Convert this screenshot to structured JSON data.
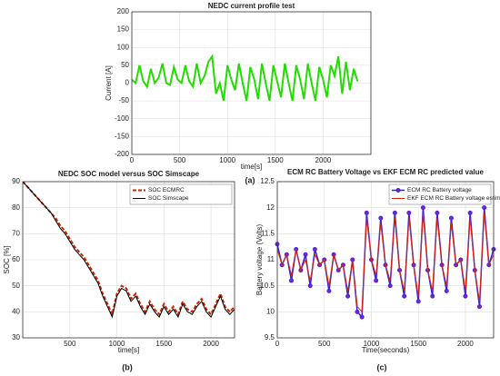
{
  "chart_data": [
    {
      "type": "line",
      "title": "NEDC current profile test",
      "x_label": "time[s]",
      "y_label": "Current [A]",
      "caption": "(a)",
      "xlim": [
        0,
        2500
      ],
      "xticks": [
        0,
        500,
        1000,
        1500,
        2000
      ],
      "ylim": [
        -200,
        200
      ],
      "yticks": [
        -200,
        -150,
        -100,
        -50,
        0,
        50,
        100,
        150,
        200
      ],
      "grid": true,
      "x": [
        0,
        40,
        80,
        120,
        160,
        200,
        240,
        280,
        320,
        360,
        400,
        440,
        480,
        520,
        560,
        600,
        640,
        680,
        720,
        760,
        800,
        840,
        880,
        920,
        960,
        1000,
        1040,
        1080,
        1120,
        1160,
        1200,
        1240,
        1280,
        1320,
        1360,
        1400,
        1440,
        1480,
        1520,
        1560,
        1600,
        1640,
        1680,
        1720,
        1760,
        1800,
        1840,
        1880,
        1920,
        1960,
        2000,
        2040,
        2080,
        2120,
        2160,
        2200,
        2240,
        2280,
        2320,
        2360
      ],
      "series": [
        {
          "name": null,
          "color": "#22dd00",
          "width": 2,
          "values": [
            10,
            0,
            50,
            5,
            -10,
            40,
            0,
            15,
            55,
            0,
            -5,
            45,
            10,
            0,
            50,
            5,
            -10,
            55,
            0,
            20,
            60,
            75,
            -30,
            0,
            -50,
            50,
            10,
            -20,
            55,
            0,
            -50,
            45,
            10,
            -45,
            55,
            0,
            -50,
            50,
            5,
            -40,
            55,
            0,
            -50,
            50,
            10,
            -45,
            55,
            0,
            -50,
            45,
            10,
            -40,
            50,
            20,
            75,
            -30,
            60,
            -20,
            40,
            5
          ]
        }
      ]
    },
    {
      "type": "line",
      "title": "NEDC SOC model versus  SOC Simscape",
      "x_label": "time[s]",
      "y_label": "SOC [%]",
      "caption": "(b)",
      "xlim": [
        0,
        2250
      ],
      "xticks": [
        500,
        1000,
        1500,
        2000
      ],
      "ylim": [
        30,
        90
      ],
      "yticks": [
        30,
        40,
        50,
        60,
        70,
        80,
        90
      ],
      "grid": true,
      "legend": "northeast",
      "x": [
        0,
        50,
        100,
        150,
        200,
        250,
        300,
        350,
        400,
        450,
        500,
        550,
        600,
        650,
        700,
        750,
        800,
        850,
        900,
        950,
        1000,
        1050,
        1100,
        1150,
        1200,
        1250,
        1300,
        1350,
        1400,
        1450,
        1500,
        1550,
        1600,
        1650,
        1700,
        1750,
        1800,
        1850,
        1900,
        1950,
        2000,
        2050,
        2100,
        2150,
        2200,
        2250
      ],
      "series": [
        {
          "name": "SOC ECMRC",
          "color": "#cc2200",
          "width": 2,
          "dash": true,
          "values": [
            90,
            88,
            86,
            84,
            82,
            80,
            78,
            76,
            73,
            71,
            68,
            65,
            63,
            61,
            58,
            55,
            52,
            47,
            43,
            39,
            47,
            50,
            49,
            45,
            47,
            43,
            40,
            44,
            41,
            39,
            43,
            40,
            42,
            39,
            44,
            41,
            40,
            43,
            45,
            41,
            39,
            43,
            47,
            42,
            40,
            42
          ]
        },
        {
          "name": "SOC Simscape",
          "color": "#000000",
          "width": 1,
          "values": [
            90,
            88,
            86,
            84,
            82,
            80,
            78,
            75,
            72,
            70,
            67,
            64,
            62,
            60,
            57,
            54,
            51,
            46,
            42,
            38,
            46,
            49,
            48,
            44,
            46,
            42,
            39,
            43,
            40,
            38,
            42,
            39,
            41,
            38,
            43,
            40,
            39,
            42,
            44,
            40,
            38,
            42,
            46,
            41,
            39,
            41
          ]
        }
      ]
    },
    {
      "type": "line",
      "title": "ECM RC Battery Voltage vs EKF ECM RC predicted value",
      "x_label": "Time(seconds)",
      "y_label": "Battery voltage (Volts)",
      "caption": "(c)",
      "xlim": [
        0,
        2300
      ],
      "xticks": [
        0,
        500,
        1000,
        1500,
        2000
      ],
      "ylim": [
        9.5,
        12.5
      ],
      "yticks": [
        9.5,
        10,
        10.5,
        11,
        11.5,
        12,
        12.5
      ],
      "grid": true,
      "legend": "northeast",
      "x": [
        0,
        50,
        100,
        150,
        200,
        250,
        300,
        350,
        400,
        450,
        500,
        550,
        600,
        650,
        700,
        750,
        800,
        850,
        900,
        950,
        1000,
        1050,
        1100,
        1150,
        1200,
        1250,
        1300,
        1350,
        1400,
        1450,
        1500,
        1550,
        1600,
        1650,
        1700,
        1750,
        1800,
        1850,
        1900,
        1950,
        2000,
        2050,
        2100,
        2150,
        2200,
        2250,
        2300
      ],
      "series": [
        {
          "name": "ECM RC Battery voltage",
          "color": "#3322dd",
          "width": 1.5,
          "marker": true,
          "values": [
            11.3,
            10.9,
            11.1,
            10.6,
            11.2,
            10.8,
            11.1,
            10.5,
            11.2,
            10.9,
            11.0,
            10.4,
            11.1,
            10.8,
            10.9,
            10.3,
            11.0,
            10.0,
            9.9,
            11.9,
            11.0,
            10.6,
            11.8,
            10.9,
            10.5,
            11.9,
            10.8,
            10.3,
            11.9,
            10.9,
            10.2,
            12.0,
            10.8,
            10.3,
            11.9,
            10.9,
            10.4,
            11.8,
            10.9,
            11.0,
            10.3,
            11.9,
            10.8,
            10.1,
            12.0,
            10.9,
            11.2
          ]
        },
        {
          "name": "EKF ECM RC Battery voltage estimate",
          "color": "#dd2200",
          "width": 1,
          "values": [
            11.2,
            10.9,
            11.1,
            10.7,
            11.2,
            10.8,
            11.0,
            10.6,
            11.1,
            10.9,
            11.0,
            10.5,
            11.1,
            10.8,
            10.9,
            10.4,
            11.0,
            10.1,
            10.0,
            11.8,
            11.0,
            10.7,
            11.7,
            10.9,
            10.6,
            11.8,
            10.8,
            10.4,
            11.8,
            10.9,
            10.3,
            11.9,
            10.8,
            10.4,
            11.8,
            10.9,
            10.5,
            11.7,
            10.9,
            11.0,
            10.4,
            11.8,
            10.8,
            10.2,
            11.9,
            10.9,
            11.1
          ]
        }
      ]
    }
  ]
}
